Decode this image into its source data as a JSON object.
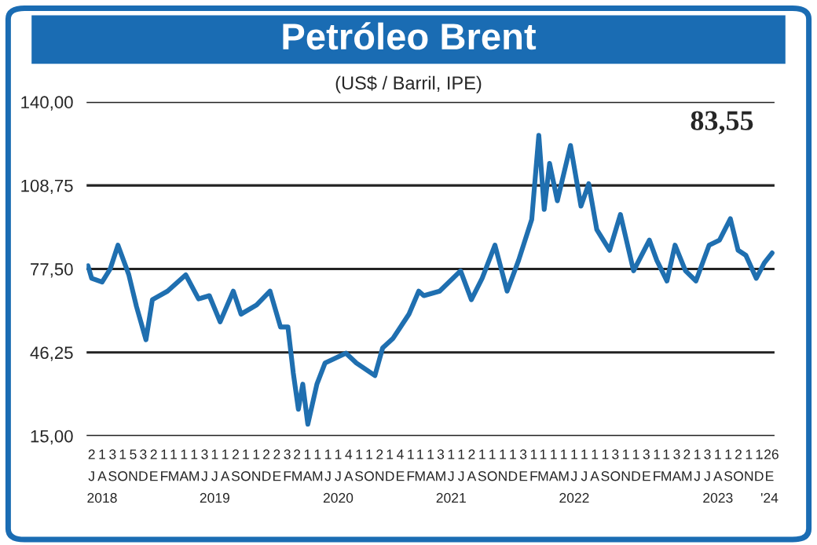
{
  "chart_data": {
    "type": "line",
    "title": "Petróleo Brent",
    "subtitle": "(US$ / Barril, IPE)",
    "annotations": [
      "83,55"
    ],
    "x": [
      "2018-07-05",
      "2018-07-16",
      "2018-08-16",
      "2018-09-09",
      "2018-10-02",
      "2018-11-03",
      "2018-11-26",
      "2018-12-24",
      "2019-01-12",
      "2019-02-26",
      "2019-04-21",
      "2019-05-29",
      "2019-06-30",
      "2019-08-01",
      "2019-09-09",
      "2019-10-02",
      "2019-11-17",
      "2019-12-27",
      "2020-01-27",
      "2020-02-18",
      "2020-03-05",
      "2020-03-20",
      "2020-04-02",
      "2020-04-17",
      "2020-05-14",
      "2020-06-07",
      "2020-08-08",
      "2020-09-08",
      "2020-11-02",
      "2020-11-25",
      "2020-12-26",
      "2021-02-11",
      "2021-03-12",
      "2021-03-27",
      "2021-05-13",
      "2021-07-14",
      "2021-08-15",
      "2021-09-16",
      "2021-10-24",
      "2021-11-29",
      "2022-01-02",
      "2022-02-10",
      "2022-03-03",
      "2022-03-19",
      "2022-04-04",
      "2022-04-27",
      "2022-06-05",
      "2022-07-06",
      "2022-07-29",
      "2022-08-22",
      "2022-09-29",
      "2022-10-31",
      "2022-12-09",
      "2023-01-25",
      "2023-02-16",
      "2023-03-18",
      "2023-04-11",
      "2023-05-12",
      "2023-06-12",
      "2023-07-21",
      "2023-08-21",
      "2023-09-22",
      "2023-10-15",
      "2023-11-07",
      "2023-12-08",
      "2024-01-01",
      "2024-01-24"
    ],
    "series": [
      {
        "color": "#1f6fb0",
        "values": [
          78.7,
          74,
          72.6,
          77.5,
          86.4,
          75.4,
          63.4,
          51,
          66,
          69.2,
          75.3,
          66.3,
          67.5,
          57.7,
          69.2,
          60.6,
          64,
          69.2,
          55.8,
          55.8,
          38.5,
          25,
          34.4,
          19.4,
          34.4,
          42.3,
          46,
          42.3,
          37.6,
          48,
          51.6,
          60.6,
          69.2,
          67.5,
          69.2,
          76.8,
          66,
          74,
          86.4,
          69.2,
          80.7,
          96,
          127.5,
          99.8,
          117,
          103,
          123.7,
          101,
          109.4,
          92.2,
          84.5,
          97.9,
          76.8,
          88.3,
          80.7,
          73,
          86.4,
          76.8,
          73,
          86.4,
          88.3,
          96.3,
          84.5,
          82.6,
          74,
          79.8,
          83.5
        ]
      }
    ],
    "xlim": [
      "2018-07-01",
      "2024-01-31"
    ],
    "xticks": [
      {
        "value": "2018-07-16",
        "label": "2\nJ\n"
      },
      {
        "value": "2018-08-16",
        "label": "1\nA\n2018"
      },
      {
        "value": "2018-09-16",
        "label": "3\nS\n"
      },
      {
        "value": "2018-10-16",
        "label": "1\nO\n"
      },
      {
        "value": "2018-11-16",
        "label": "5\nN\n"
      },
      {
        "value": "2018-12-16",
        "label": "3\nD\n"
      },
      {
        "value": "2019-01-16",
        "label": "2\nE\n"
      },
      {
        "value": "2019-02-16",
        "label": "1\nF\n"
      },
      {
        "value": "2019-03-16",
        "label": "1\nM\n"
      },
      {
        "value": "2019-04-16",
        "label": "1\nA\n"
      },
      {
        "value": "2019-05-16",
        "label": "1\nM\n"
      },
      {
        "value": "2019-06-16",
        "label": "3\nJ\n"
      },
      {
        "value": "2019-07-16",
        "label": "1\nJ\n2019"
      },
      {
        "value": "2019-08-16",
        "label": "1\nA\n"
      },
      {
        "value": "2019-09-16",
        "label": "2\nS\n"
      },
      {
        "value": "2019-10-16",
        "label": "1\nO\n"
      },
      {
        "value": "2019-11-16",
        "label": "1\nN\n"
      },
      {
        "value": "2019-12-16",
        "label": "2\nD\n"
      },
      {
        "value": "2020-01-16",
        "label": "2\nE\n"
      },
      {
        "value": "2020-02-16",
        "label": "3\nF\n"
      },
      {
        "value": "2020-03-16",
        "label": "2\nM\n"
      },
      {
        "value": "2020-04-16",
        "label": "1\nA\n"
      },
      {
        "value": "2020-05-16",
        "label": "1\nM\n"
      },
      {
        "value": "2020-06-16",
        "label": "1\nJ\n"
      },
      {
        "value": "2020-07-16",
        "label": "1\nJ\n2020"
      },
      {
        "value": "2020-08-16",
        "label": "4\nA\n"
      },
      {
        "value": "2020-09-16",
        "label": "1\nS\n"
      },
      {
        "value": "2020-10-16",
        "label": "1\nO\n"
      },
      {
        "value": "2020-11-16",
        "label": "2\nN\n"
      },
      {
        "value": "2020-12-16",
        "label": "1\nD\n"
      },
      {
        "value": "2021-01-16",
        "label": "4\nE\n"
      },
      {
        "value": "2021-02-16",
        "label": "1\nF\n"
      },
      {
        "value": "2021-03-16",
        "label": "1\nM\n"
      },
      {
        "value": "2021-04-16",
        "label": "1\nA\n"
      },
      {
        "value": "2021-05-16",
        "label": "3\nM\n"
      },
      {
        "value": "2021-06-16",
        "label": "1\nJ\n2021"
      },
      {
        "value": "2021-07-16",
        "label": "1\nJ\n"
      },
      {
        "value": "2021-08-16",
        "label": "2\nA\n"
      },
      {
        "value": "2021-09-16",
        "label": "1\nS\n"
      },
      {
        "value": "2021-10-16",
        "label": "1\nO\n"
      },
      {
        "value": "2021-11-16",
        "label": "1\nN\n"
      },
      {
        "value": "2021-12-16",
        "label": "1\nD\n"
      },
      {
        "value": "2022-01-16",
        "label": "3\nE\n"
      },
      {
        "value": "2022-02-16",
        "label": "1\nF\n"
      },
      {
        "value": "2022-03-16",
        "label": "1\nM\n"
      },
      {
        "value": "2022-04-16",
        "label": "1\nA\n"
      },
      {
        "value": "2022-05-16",
        "label": "1\nM\n"
      },
      {
        "value": "2022-06-16",
        "label": "1\nJ\n2022"
      },
      {
        "value": "2022-07-16",
        "label": "1\nJ\n"
      },
      {
        "value": "2022-08-16",
        "label": "1\nA\n"
      },
      {
        "value": "2022-09-16",
        "label": "1\nS\n"
      },
      {
        "value": "2022-10-16",
        "label": "3\nO\n"
      },
      {
        "value": "2022-11-16",
        "label": "1\nN\n"
      },
      {
        "value": "2022-12-16",
        "label": "1\nD\n"
      },
      {
        "value": "2023-01-16",
        "label": "3\nE\n"
      },
      {
        "value": "2023-02-16",
        "label": "1\nF\n"
      },
      {
        "value": "2023-03-16",
        "label": "1\nM\n"
      },
      {
        "value": "2023-04-16",
        "label": "3\nA\n"
      },
      {
        "value": "2023-05-16",
        "label": "2\nM\n"
      },
      {
        "value": "2023-06-16",
        "label": "1\nJ\n"
      },
      {
        "value": "2023-07-16",
        "label": "3\nJ\n"
      },
      {
        "value": "2023-08-16",
        "label": "1\nA\n2023"
      },
      {
        "value": "2023-09-16",
        "label": "1\nS\n"
      },
      {
        "value": "2023-10-16",
        "label": "2\nO\n"
      },
      {
        "value": "2023-11-16",
        "label": "1\nN\n"
      },
      {
        "value": "2023-12-16",
        "label": "1\nD\n"
      },
      {
        "value": "2024-01-16",
        "label": ".26\nE\n'24"
      }
    ],
    "ylim": [
      15,
      140
    ],
    "yticks": [
      {
        "value": 15,
        "label": "15,00"
      },
      {
        "value": 46.25,
        "label": "46,25"
      },
      {
        "value": 77.5,
        "label": "77,50"
      },
      {
        "value": 108.75,
        "label": "108,75"
      },
      {
        "value": 140,
        "label": "140,00"
      }
    ],
    "grid": "y",
    "legend": false,
    "marker": "none",
    "line_style": "solid"
  }
}
